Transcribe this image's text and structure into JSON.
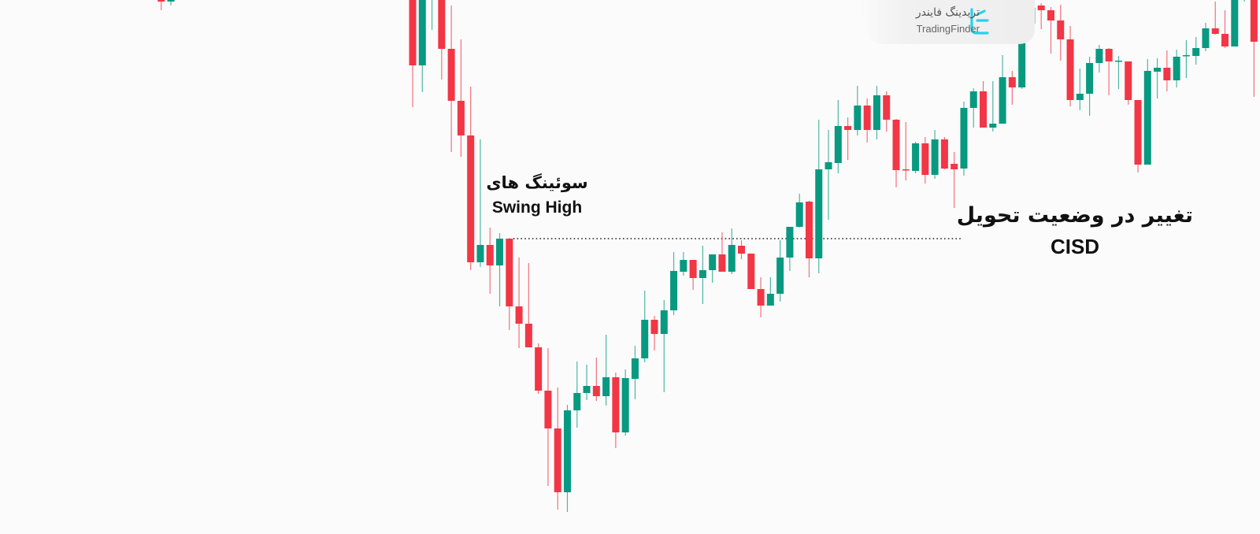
{
  "colors": {
    "up": "#089981",
    "down": "#F23645",
    "background": "#FBFBFB",
    "logo_accent": "#22D3EE"
  },
  "annotations": {
    "swing_high_fa": "سوئینگ های",
    "swing_high_en": "Swing High",
    "cisd_fa": "تغییر در وضعیت تحویل",
    "cisd_en": "CISD"
  },
  "logo": {
    "name_fa": "تریدینگ فایندر",
    "name_en": "TradingFinder",
    "icon": "tradingfinder-logo-icon"
  },
  "chart_data": {
    "type": "candlestick",
    "title": "",
    "xlabel": "",
    "ylabel": "",
    "grid": false,
    "axes_visible": false,
    "swing_high_level": {
      "price": 375,
      "from_bar": 10,
      "to_bar": 56,
      "style": "dotted"
    },
    "candles_fields": [
      "bar",
      "open",
      "high",
      "low",
      "close"
    ],
    "candles": [
      [
        -26,
        682,
        684,
        665,
        676
      ],
      [
        -25,
        676,
        684,
        671,
        682
      ],
      [
        0,
        688,
        693,
        542,
        595
      ],
      [
        1,
        595,
        693,
        561,
        688
      ],
      [
        2,
        693,
        715,
        640,
        708
      ],
      [
        3,
        686,
        690,
        577,
        616
      ],
      [
        4,
        616,
        671,
        485,
        550
      ],
      [
        5,
        550,
        628,
        479,
        506
      ],
      [
        6,
        506,
        568,
        335,
        345
      ],
      [
        7,
        345,
        501,
        339,
        367
      ],
      [
        8,
        367,
        389,
        305,
        341
      ],
      [
        9,
        341,
        382,
        289,
        375
      ],
      [
        10,
        375,
        376,
        259,
        289
      ],
      [
        11,
        289,
        351,
        236,
        267
      ],
      [
        12,
        267,
        344,
        237,
        237
      ],
      [
        13,
        237,
        242,
        178,
        182
      ],
      [
        14,
        182,
        236,
        61,
        134
      ],
      [
        15,
        134,
        186,
        31,
        53
      ],
      [
        16,
        53,
        164,
        28,
        157
      ],
      [
        17,
        157,
        219,
        135,
        179
      ],
      [
        18,
        179,
        215,
        170,
        188
      ],
      [
        19,
        188,
        224,
        169,
        175
      ],
      [
        20,
        175,
        253,
        163,
        199
      ],
      [
        21,
        199,
        205,
        109,
        129
      ],
      [
        22,
        129,
        209,
        125,
        198
      ],
      [
        23,
        197,
        239,
        171,
        223
      ],
      [
        24,
        223,
        309,
        218,
        272
      ],
      [
        25,
        272,
        277,
        233,
        254
      ],
      [
        26,
        254,
        297,
        180,
        284
      ],
      [
        27,
        284,
        358,
        278,
        334
      ],
      [
        28,
        333,
        358,
        328,
        348
      ],
      [
        29,
        348,
        348,
        310,
        325
      ],
      [
        30,
        325,
        366,
        292,
        335
      ],
      [
        31,
        335,
        355,
        319,
        355
      ],
      [
        32,
        355,
        383,
        333,
        333
      ],
      [
        33,
        333,
        388,
        330,
        367
      ],
      [
        34,
        366,
        373,
        349,
        356
      ],
      [
        35,
        356,
        356,
        311,
        311
      ],
      [
        36,
        311,
        326,
        275,
        290
      ],
      [
        37,
        290,
        326,
        290,
        305
      ],
      [
        38,
        305,
        373,
        295,
        351
      ],
      [
        39,
        351,
        390,
        334,
        390
      ],
      [
        40,
        390,
        432,
        389,
        421
      ],
      [
        41,
        422,
        423,
        326,
        350
      ],
      [
        42,
        350,
        526,
        331,
        463
      ],
      [
        43,
        463,
        513,
        399,
        472
      ],
      [
        44,
        471,
        551,
        458,
        518
      ],
      [
        45,
        518,
        529,
        475,
        513
      ],
      [
        46,
        513,
        569,
        506,
        544
      ],
      [
        47,
        544,
        553,
        497,
        513
      ],
      [
        48,
        513,
        569,
        501,
        557
      ],
      [
        49,
        557,
        562,
        511,
        526
      ],
      [
        50,
        526,
        527,
        440,
        462
      ],
      [
        51,
        463,
        523,
        449,
        462
      ],
      [
        52,
        461,
        498,
        458,
        496
      ],
      [
        53,
        496,
        504,
        445,
        456
      ],
      [
        54,
        456,
        513,
        451,
        501
      ],
      [
        55,
        501,
        504,
        463,
        464
      ],
      [
        56,
        470,
        485,
        414,
        463
      ],
      [
        57,
        464,
        549,
        455,
        541
      ],
      [
        58,
        541,
        566,
        516,
        562
      ],
      [
        59,
        562,
        575,
        516,
        516
      ],
      [
        60,
        516,
        575,
        511,
        521
      ],
      [
        61,
        521,
        608,
        521,
        580
      ],
      [
        62,
        580,
        588,
        545,
        567
      ],
      [
        63,
        567,
        668,
        565,
        631
      ],
      [
        64,
        648,
        673,
        635,
        668
      ],
      [
        65,
        671,
        674,
        641,
        665
      ],
      [
        66,
        665,
        669,
        610,
        652
      ],
      [
        67,
        652,
        672,
        601,
        628
      ],
      [
        68,
        628,
        645,
        543,
        551
      ],
      [
        69,
        551,
        591,
        538,
        559
      ],
      [
        70,
        559,
        606,
        531,
        598
      ],
      [
        71,
        598,
        621,
        586,
        616
      ],
      [
        72,
        616,
        617,
        557,
        600
      ],
      [
        73,
        600,
        607,
        565,
        601
      ],
      [
        74,
        600,
        600,
        545,
        551
      ],
      [
        75,
        551,
        551,
        459,
        469
      ],
      [
        76,
        469,
        603,
        469,
        588
      ],
      [
        77,
        587,
        604,
        553,
        592
      ],
      [
        78,
        592,
        614,
        562,
        576
      ],
      [
        79,
        576,
        615,
        567,
        606
      ],
      [
        80,
        607,
        627,
        579,
        608
      ],
      [
        81,
        607,
        631,
        596,
        617
      ],
      [
        82,
        617,
        649,
        613,
        642
      ],
      [
        83,
        642,
        676,
        634,
        635
      ],
      [
        84,
        635,
        665,
        617,
        619
      ],
      [
        85,
        619,
        690,
        619,
        688
      ],
      [
        86,
        700,
        715,
        676,
        710
      ],
      [
        87,
        688,
        690,
        555,
        625
      ]
    ]
  }
}
